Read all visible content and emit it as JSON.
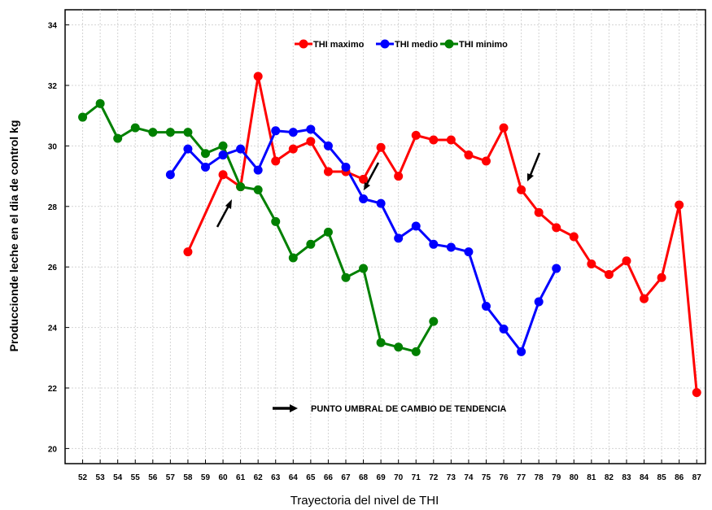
{
  "chart_data": {
    "type": "line",
    "xlabel": "Trayectoria del nivel de THI",
    "ylabel": "Produccionde leche en el dia de control kg",
    "xlim": [
      51,
      87.5
    ],
    "ylim": [
      19.5,
      34.5
    ],
    "x_ticks": [
      52,
      53,
      54,
      55,
      56,
      57,
      58,
      59,
      60,
      61,
      62,
      63,
      64,
      65,
      66,
      67,
      68,
      69,
      70,
      71,
      72,
      73,
      74,
      75,
      76,
      77,
      78,
      79,
      80,
      81,
      82,
      83,
      84,
      85,
      86,
      87
    ],
    "y_ticks": [
      20,
      22,
      24,
      26,
      28,
      30,
      32,
      34
    ],
    "grid": true,
    "legend_position": "top-center",
    "annotation_text": "PUNTO UMBRAL DE CAMBIO DE TENDENCIA",
    "series": [
      {
        "name": "THI maximo",
        "color": "#ff0000",
        "x": [
          58,
          60,
          61,
          62,
          63,
          64,
          65,
          66,
          67,
          68,
          69,
          70,
          71,
          72,
          73,
          74,
          75,
          76,
          77,
          78,
          79,
          80,
          81,
          82,
          83,
          84,
          85,
          86,
          87
        ],
        "values": [
          26.5,
          29.05,
          28.65,
          32.3,
          29.5,
          29.9,
          30.15,
          29.15,
          29.15,
          28.9,
          29.95,
          29.0,
          30.35,
          30.2,
          30.2,
          29.7,
          29.5,
          30.6,
          28.55,
          27.8,
          27.3,
          27.0,
          26.1,
          25.75,
          26.2,
          24.95,
          25.65,
          28.05,
          21.85
        ]
      },
      {
        "name": "THI medio",
        "color": "#0000ff",
        "x": [
          57,
          58,
          59,
          60,
          61,
          62,
          63,
          64,
          65,
          66,
          67,
          68,
          69,
          70,
          71,
          72,
          73,
          74,
          75,
          76,
          77,
          78,
          79
        ],
        "values": [
          29.05,
          29.9,
          29.3,
          29.7,
          29.9,
          29.2,
          30.5,
          30.45,
          30.55,
          30.0,
          29.3,
          28.25,
          28.1,
          26.95,
          27.35,
          26.75,
          26.65,
          26.5,
          24.7,
          23.95,
          23.2,
          24.85,
          25.95
        ]
      },
      {
        "name": "THI minimo",
        "color": "#008000",
        "x": [
          52,
          53,
          54,
          55,
          56,
          57,
          58,
          59,
          60,
          61,
          62,
          63,
          64,
          65,
          66,
          67,
          68,
          69,
          70,
          71,
          72
        ],
        "values": [
          30.95,
          31.4,
          30.25,
          30.6,
          30.45,
          30.45,
          30.45,
          29.75,
          30.0,
          28.65,
          28.55,
          27.5,
          26.3,
          26.75,
          27.15,
          25.65,
          25.95,
          23.5,
          23.35,
          23.2,
          24.2
        ]
      }
    ]
  }
}
